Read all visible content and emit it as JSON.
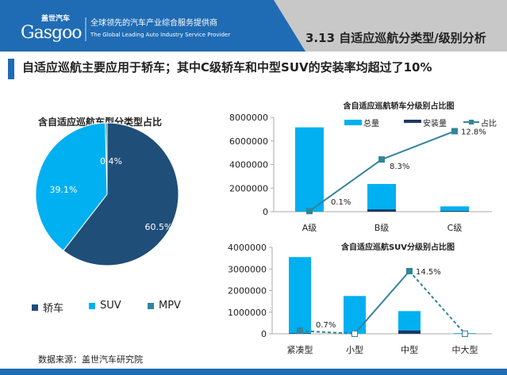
{
  "header": {
    "logo_cn": "盖世汽车",
    "logo_en": "Gasgoo",
    "tagline_cn": "全球领先的汽车产业综合服务提供商",
    "tagline_en": "The Global Leading Auto Industry Service Provider",
    "section": "3.13 自适应巡航分类型/级别分析"
  },
  "subtitle": "自适应巡航主要应用于轿车；其中C级轿车和中型SUV的安装率均超过了10%",
  "source": "数据来源：盖世汽车研究院",
  "colors": {
    "header_blue": "#1f6cb5",
    "header_gray": "#c8c8c8",
    "sedan": "#1f4e79",
    "suv": "#00b0f0",
    "mpv": "#31859c",
    "total": "#00b0f0",
    "installed": "#1f3864",
    "ratio": "#31859c"
  },
  "chart_data": [
    {
      "type": "pie",
      "title": "含自适应巡航车型分类型占比",
      "categories": [
        "轿车",
        "SUV",
        "MPV"
      ],
      "values": [
        60.5,
        39.1,
        0.4
      ],
      "labels": [
        "60.5%",
        "39.1%",
        "0.4%"
      ],
      "legend": "bottom"
    },
    {
      "type": "bar+line",
      "title": "含自适应巡航轿车分级别占比图",
      "categories": [
        "A级",
        "B级",
        "C级"
      ],
      "ylim": [
        0,
        8000000
      ],
      "yticks": [
        "0",
        "2000000",
        "4000000",
        "6000000",
        "8000000"
      ],
      "legend": "top-right",
      "series": [
        {
          "name": "总量",
          "type": "bar",
          "values": [
            7150000,
            2350000,
            450000
          ]
        },
        {
          "name": "安装量",
          "type": "bar",
          "values": [
            7000,
            195000,
            58000
          ]
        },
        {
          "name": "占比",
          "type": "line",
          "axis": "secondary",
          "values": [
            0.1,
            8.3,
            12.8
          ],
          "labels": [
            "0.1%",
            "8.3%",
            "12.8%"
          ]
        }
      ],
      "y2lim": [
        0,
        15
      ]
    },
    {
      "type": "bar+line",
      "title": "含自适应巡航SUV分级别占比图",
      "categories": [
        "紧凑型",
        "小型",
        "中型",
        "中大型"
      ],
      "ylim": [
        0,
        4000000
      ],
      "yticks": [
        "0",
        "1000000",
        "2000000",
        "3000000",
        "4000000"
      ],
      "series": [
        {
          "name": "总量",
          "type": "bar",
          "values": [
            3550000,
            1750000,
            1050000,
            30000
          ]
        },
        {
          "name": "安装量",
          "type": "bar",
          "values": [
            25000,
            0,
            150000,
            0
          ]
        },
        {
          "name": "占比",
          "type": "line",
          "axis": "secondary",
          "values": [
            0.7,
            0,
            14.5,
            0
          ],
          "labels": [
            "0.7%",
            "",
            "14.5%",
            ""
          ]
        }
      ],
      "y2lim": [
        0,
        20
      ]
    }
  ]
}
